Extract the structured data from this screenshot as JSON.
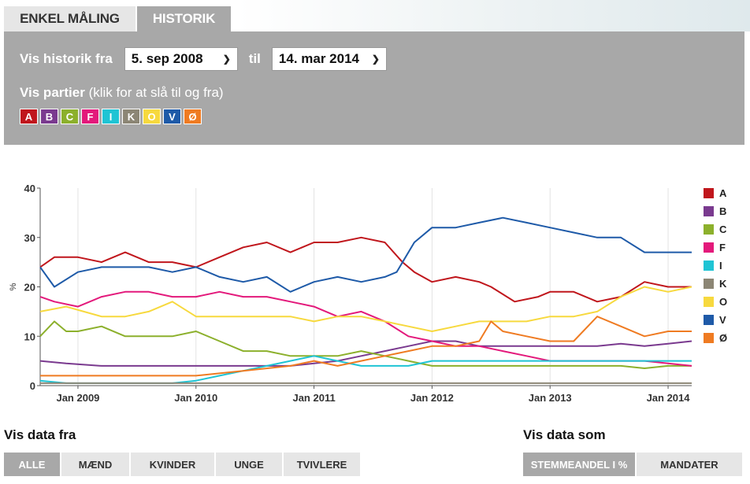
{
  "tabs": [
    {
      "label": "ENKEL MÅLING",
      "active": false
    },
    {
      "label": "HISTORIK",
      "active": true
    }
  ],
  "filter": {
    "from_label": "Vis historik fra",
    "from_value": "5. sep 2008",
    "til_label": "til",
    "to_value": "14. mar 2014",
    "parties_label_bold": "Vis partier",
    "parties_label_rest": "(klik for at slå til og fra)"
  },
  "parties": [
    {
      "letter": "A",
      "color": "#c0161c"
    },
    {
      "letter": "B",
      "color": "#7a3a8f"
    },
    {
      "letter": "C",
      "color": "#8cb02c"
    },
    {
      "letter": "F",
      "color": "#e3197b"
    },
    {
      "letter": "I",
      "color": "#1fc4d4"
    },
    {
      "letter": "K",
      "color": "#8c8675"
    },
    {
      "letter": "O",
      "color": "#f7d93e"
    },
    {
      "letter": "V",
      "color": "#1e5aa8"
    },
    {
      "letter": "Ø",
      "color": "#ef7b22"
    }
  ],
  "chart_data": {
    "type": "line",
    "ylabel": "%",
    "ylim": [
      0,
      40
    ],
    "yticks": [
      0,
      10,
      20,
      30,
      40
    ],
    "xlim": [
      2008.68,
      2014.2
    ],
    "xticks": [
      {
        "value": 2009.0,
        "label": "Jan 2009"
      },
      {
        "value": 2010.0,
        "label": "Jan 2010"
      },
      {
        "value": 2011.0,
        "label": "Jan 2011"
      },
      {
        "value": 2012.0,
        "label": "Jan 2012"
      },
      {
        "value": 2013.0,
        "label": "Jan 2013"
      },
      {
        "value": 2014.0,
        "label": "Jan 2014"
      }
    ],
    "grid": "vertical",
    "legend": "right",
    "series": [
      {
        "name": "A",
        "color": "#c0161c",
        "x": [
          2008.68,
          2008.8,
          2009.0,
          2009.2,
          2009.4,
          2009.6,
          2009.8,
          2010.0,
          2010.2,
          2010.4,
          2010.6,
          2010.8,
          2011.0,
          2011.2,
          2011.4,
          2011.6,
          2011.75,
          2011.85,
          2012.0,
          2012.2,
          2012.4,
          2012.5,
          2012.7,
          2012.9,
          2013.0,
          2013.2,
          2013.4,
          2013.6,
          2013.8,
          2014.0,
          2014.2
        ],
        "y": [
          24,
          26,
          26,
          25,
          27,
          25,
          25,
          24,
          26,
          28,
          29,
          27,
          29,
          29,
          30,
          29,
          25,
          23,
          21,
          22,
          21,
          20,
          17,
          18,
          19,
          19,
          17,
          18,
          21,
          20,
          20
        ]
      },
      {
        "name": "B",
        "color": "#7a3a8f",
        "x": [
          2008.68,
          2008.9,
          2009.2,
          2009.6,
          2010.0,
          2010.4,
          2010.8,
          2011.0,
          2011.2,
          2011.4,
          2011.6,
          2011.8,
          2012.0,
          2012.2,
          2012.4,
          2012.6,
          2012.8,
          2013.0,
          2013.2,
          2013.4,
          2013.6,
          2013.8,
          2014.0,
          2014.2
        ],
        "y": [
          5,
          4.5,
          4,
          4,
          4,
          4,
          4,
          4.5,
          5,
          6,
          7,
          8,
          9,
          9,
          8,
          8,
          8,
          8,
          8,
          8,
          8.5,
          8,
          8.5,
          9
        ]
      },
      {
        "name": "C",
        "color": "#8cb02c",
        "x": [
          2008.68,
          2008.8,
          2008.9,
          2009.0,
          2009.2,
          2009.4,
          2009.6,
          2009.8,
          2010.0,
          2010.2,
          2010.4,
          2010.6,
          2010.8,
          2011.0,
          2011.2,
          2011.4,
          2011.6,
          2011.8,
          2012.0,
          2012.2,
          2012.4,
          2012.6,
          2012.8,
          2013.0,
          2013.2,
          2013.4,
          2013.6,
          2013.8,
          2014.0,
          2014.2
        ],
        "y": [
          10,
          13,
          11,
          11,
          12,
          10,
          10,
          10,
          11,
          9,
          7,
          7,
          6,
          6,
          6,
          7,
          6,
          5,
          4,
          4,
          4,
          4,
          4,
          4,
          4,
          4,
          4,
          3.5,
          4,
          4
        ]
      },
      {
        "name": "F",
        "color": "#e3197b",
        "x": [
          2008.68,
          2008.8,
          2009.0,
          2009.2,
          2009.4,
          2009.6,
          2009.8,
          2010.0,
          2010.2,
          2010.4,
          2010.6,
          2010.8,
          2011.0,
          2011.2,
          2011.4,
          2011.6,
          2011.8,
          2012.0,
          2012.2,
          2012.4,
          2012.6,
          2012.8,
          2013.0,
          2013.2,
          2013.4,
          2013.6,
          2013.8,
          2014.0,
          2014.2
        ],
        "y": [
          18,
          17,
          16,
          18,
          19,
          19,
          18,
          18,
          19,
          18,
          18,
          17,
          16,
          14,
          15,
          13,
          10,
          9,
          8,
          8,
          7,
          6,
          5,
          5,
          5,
          5,
          5,
          4.5,
          4
        ]
      },
      {
        "name": "I",
        "color": "#1fc4d4",
        "x": [
          2008.68,
          2008.9,
          2009.2,
          2009.5,
          2009.8,
          2010.0,
          2010.2,
          2010.4,
          2010.6,
          2010.8,
          2011.0,
          2011.2,
          2011.4,
          2011.6,
          2011.8,
          2012.0,
          2012.2,
          2012.4,
          2012.6,
          2012.8,
          2013.0,
          2013.2,
          2013.4,
          2013.6,
          2013.8,
          2014.0,
          2014.2
        ],
        "y": [
          1,
          0.5,
          0.5,
          0.5,
          0.5,
          1,
          2,
          3,
          4,
          5,
          6,
          5,
          4,
          4,
          4,
          5,
          5,
          5,
          5,
          5,
          5,
          5,
          5,
          5,
          5,
          5,
          5
        ]
      },
      {
        "name": "K",
        "color": "#8c8675",
        "x": [
          2008.68,
          2009.0,
          2009.5,
          2010.0,
          2010.5,
          2011.0,
          2011.5,
          2012.0,
          2012.5,
          2013.0,
          2013.5,
          2014.0,
          2014.2
        ],
        "y": [
          0.5,
          0.5,
          0.5,
          0.5,
          0.5,
          0.5,
          0.5,
          0.5,
          0.5,
          0.5,
          0.5,
          0.5,
          0.5
        ]
      },
      {
        "name": "O",
        "color": "#f7d93e",
        "x": [
          2008.68,
          2008.9,
          2009.2,
          2009.4,
          2009.6,
          2009.8,
          2010.0,
          2010.2,
          2010.4,
          2010.6,
          2010.8,
          2011.0,
          2011.2,
          2011.4,
          2011.6,
          2011.8,
          2012.0,
          2012.2,
          2012.4,
          2012.6,
          2012.8,
          2013.0,
          2013.2,
          2013.4,
          2013.6,
          2013.8,
          2014.0,
          2014.2
        ],
        "y": [
          15,
          16,
          14,
          14,
          15,
          17,
          14,
          14,
          14,
          14,
          14,
          13,
          14,
          14,
          13,
          12,
          11,
          12,
          13,
          13,
          13,
          14,
          14,
          15,
          18,
          20,
          19,
          20
        ]
      },
      {
        "name": "V",
        "color": "#1e5aa8",
        "x": [
          2008.68,
          2008.8,
          2009.0,
          2009.2,
          2009.4,
          2009.6,
          2009.8,
          2010.0,
          2010.2,
          2010.4,
          2010.6,
          2010.8,
          2011.0,
          2011.2,
          2011.4,
          2011.6,
          2011.7,
          2011.85,
          2012.0,
          2012.2,
          2012.4,
          2012.6,
          2012.8,
          2013.0,
          2013.2,
          2013.4,
          2013.6,
          2013.8,
          2014.0,
          2014.2
        ],
        "y": [
          24,
          20,
          23,
          24,
          24,
          24,
          23,
          24,
          22,
          21,
          22,
          19,
          21,
          22,
          21,
          22,
          23,
          29,
          32,
          32,
          33,
          34,
          33,
          32,
          31,
          30,
          30,
          27,
          27,
          27
        ]
      },
      {
        "name": "Ø",
        "color": "#ef7b22",
        "x": [
          2008.68,
          2009.0,
          2009.5,
          2010.0,
          2010.4,
          2010.8,
          2011.0,
          2011.2,
          2011.4,
          2011.6,
          2011.8,
          2012.0,
          2012.2,
          2012.4,
          2012.5,
          2012.6,
          2012.8,
          2013.0,
          2013.2,
          2013.4,
          2013.6,
          2013.8,
          2014.0,
          2014.2
        ],
        "y": [
          2,
          2,
          2,
          2,
          3,
          4,
          5,
          4,
          5,
          6,
          7,
          8,
          8,
          9,
          13,
          11,
          10,
          9,
          9,
          14,
          12,
          10,
          11,
          11
        ]
      }
    ]
  },
  "bottom": {
    "data_from_title": "Vis data fra",
    "data_from_buttons": [
      {
        "label": "ALLE",
        "active": true
      },
      {
        "label": "MÆND",
        "active": false
      },
      {
        "label": "KVINDER",
        "active": false
      },
      {
        "label": "UNGE",
        "active": false
      },
      {
        "label": "TVIVLERE",
        "active": false
      }
    ],
    "data_as_title": "Vis data som",
    "data_as_buttons": [
      {
        "label": "STEMMEANDEL I %",
        "active": true
      },
      {
        "label": "MANDATER",
        "active": false
      }
    ]
  }
}
